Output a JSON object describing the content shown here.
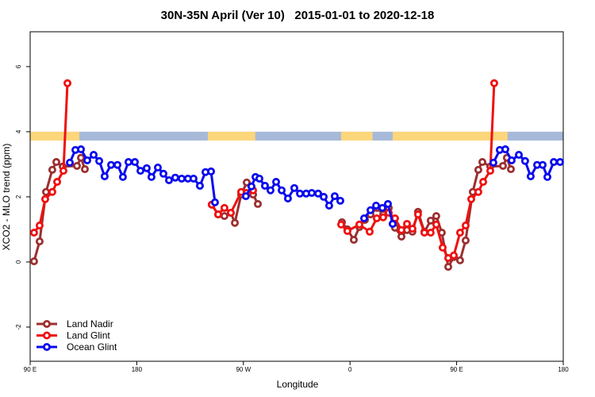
{
  "chart_data": {
    "type": "line",
    "title": "30N-35N April (Ver 10)   2015-01-01 to 2020-12-18",
    "x_label": "Longitude",
    "y_label": "XCO2 - MLO trend (ppm)",
    "xlim": [
      90,
      540
    ],
    "ylim": [
      -3.05,
      7.07
    ],
    "xticks": [
      {
        "value": 90,
        "label": "90 E"
      },
      180,
      {
        "value": 270,
        "label": "90 W"
      },
      {
        "value": 360,
        "label": "0"
      },
      {
        "value": 450,
        "label": "90 E"
      },
      {
        "value": 540,
        "label": "180"
      }
    ],
    "yticks": [
      -2,
      0,
      2,
      4,
      6
    ],
    "legend": "lower left",
    "band_ylim": [
      3.73,
      4.0
    ],
    "band_colors": {
      "ocean": "#a7b9d9",
      "land": "#fcd67a"
    },
    "land_ranges": [
      [
        90,
        131.5
      ],
      [
        240,
        280
      ],
      [
        352.5,
        379
      ],
      [
        396,
        493
      ]
    ],
    "series": [
      {
        "name": "Land Nadir",
        "color": "#9c2f2f",
        "x": [
          93.3,
          98,
          103.4,
          108.7,
          112.1,
          117.5,
          129.5,
          132.9,
          136.2,
          null,
          243.3,
          248.7,
          254,
          259.4,
          262.8,
          268.1,
          272.8,
          278.2,
          282.2,
          null,
          353.2,
          357.8,
          363.2,
          367.9,
          372.6,
          377.3,
          382.6,
          388,
          392.7,
          398,
          403.4,
          408.1,
          412.7,
          417.4,
          422.8,
          428.1,
          432.8,
          437.5,
          442.9,
          447.6,
          452.9,
          457.6,
          463.6,
          468.3,
          471.7,
          478.4,
          489.1,
          492.4,
          495.8
        ],
        "values": [
          0.02,
          0.63,
          2.15,
          2.83,
          3.07,
          2.93,
          2.95,
          3.2,
          2.85,
          null,
          1.76,
          1.46,
          1.41,
          1.51,
          1.2,
          2.07,
          2.44,
          2.07,
          1.78,
          null,
          1.22,
          1.0,
          0.68,
          1.07,
          1.29,
          1.46,
          1.66,
          1.46,
          1.66,
          1.05,
          0.78,
          0.98,
          0.93,
          1.54,
          0.93,
          1.27,
          1.41,
          0.9,
          -0.15,
          0.15,
          0.05,
          0.66,
          2.15,
          2.83,
          3.07,
          2.93,
          2.95,
          3.2,
          2.85
        ]
      },
      {
        "name": "Land Glint",
        "color": "#f01010",
        "x": [
          93.3,
          98,
          102.7,
          108.7,
          112.8,
          118.1,
          121.5,
          null,
          243.3,
          248.7,
          254,
          259.4,
          268.1,
          272.8,
          278.2,
          null,
          352.5,
          357.8,
          367.9,
          376.6,
          382.6,
          388,
          392.7,
          398,
          403.4,
          408.1,
          412.7,
          417.4,
          422.8,
          428.1,
          432.8,
          438.2,
          442.9,
          447.6,
          452.9,
          457.6,
          462.3,
          468.3,
          472.4,
          478.4,
          481.7
        ],
        "values": [
          0.9,
          1.12,
          1.93,
          2.15,
          2.46,
          2.8,
          5.49,
          null,
          1.76,
          1.46,
          1.66,
          1.51,
          2.15,
          2.12,
          2.2,
          null,
          1.15,
          0.95,
          1.15,
          0.93,
          1.34,
          1.37,
          1.51,
          1.34,
          0.98,
          1.17,
          1.02,
          1.46,
          0.9,
          0.9,
          1.15,
          0.44,
          0.12,
          0.2,
          0.9,
          1.12,
          1.93,
          2.15,
          2.46,
          2.8,
          5.49
        ]
      },
      {
        "name": "Ocean Glint",
        "color": "#0a0aee",
        "x": [
          123.5,
          128.2,
          132.9,
          138.2,
          143.6,
          148.3,
          152.9,
          158.3,
          163.7,
          168.3,
          173,
          178.4,
          183.1,
          188.4,
          192.4,
          197.8,
          202.5,
          207.2,
          212.5,
          217.9,
          223.2,
          227.9,
          233.3,
          238,
          242.7,
          246,
          null,
          272.1,
          276.8,
          280.2,
          283.5,
          288.2,
          292.9,
          297.6,
          302.3,
          307.6,
          313,
          317.7,
          323,
          327.7,
          333.1,
          337.8,
          342.4,
          347.1,
          351.8,
          null,
          371.9,
          377.3,
          382,
          387.3,
          392,
          396,
          null,
          481,
          486.4,
          491.1,
          496.4,
          502.5,
          507.8,
          512.5,
          517.9,
          522.6,
          526.6,
          532,
          537.3
        ],
        "values": [
          3.05,
          3.44,
          3.46,
          3.12,
          3.29,
          3.1,
          2.63,
          2.98,
          2.98,
          2.61,
          3.07,
          3.07,
          2.8,
          2.88,
          2.61,
          2.9,
          2.71,
          2.51,
          2.59,
          2.56,
          2.56,
          2.56,
          2.34,
          2.76,
          2.78,
          1.83,
          null,
          2.02,
          2.32,
          2.61,
          2.56,
          2.34,
          2.2,
          2.46,
          2.2,
          1.95,
          2.27,
          2.1,
          2.1,
          2.12,
          2.1,
          2.0,
          1.73,
          2.02,
          1.88,
          null,
          1.34,
          1.59,
          1.73,
          1.66,
          1.78,
          1.17,
          null,
          3.05,
          3.44,
          3.46,
          3.12,
          3.29,
          3.1,
          2.63,
          2.98,
          2.98,
          2.61,
          3.07,
          3.07
        ]
      }
    ]
  }
}
